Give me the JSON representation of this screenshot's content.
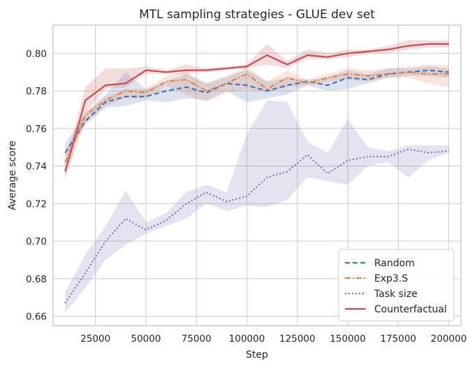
{
  "chart_data": {
    "type": "line",
    "title": "MTL sampling strategies - GLUE dev set",
    "xlabel": "Step",
    "ylabel": "Average score",
    "xlim": [
      4000,
      206000
    ],
    "ylim": [
      0.655,
      0.815
    ],
    "xticks": [
      25000,
      50000,
      75000,
      100000,
      125000,
      150000,
      175000,
      200000
    ],
    "xtick_labels": [
      "25000",
      "50000",
      "75000",
      "100000",
      "125000",
      "150000",
      "175000",
      "200000"
    ],
    "yticks": [
      0.66,
      0.68,
      0.7,
      0.72,
      0.74,
      0.76,
      0.78,
      0.8
    ],
    "ytick_labels": [
      "0.66",
      "0.68",
      "0.70",
      "0.72",
      "0.74",
      "0.76",
      "0.78",
      "0.80"
    ],
    "grid": true,
    "legend_position": "bottom-right",
    "x": [
      10000,
      20000,
      30000,
      40000,
      50000,
      60000,
      70000,
      80000,
      90000,
      100000,
      110000,
      120000,
      130000,
      140000,
      150000,
      160000,
      170000,
      180000,
      190000,
      200000
    ],
    "series": [
      {
        "name": "Random",
        "color": "#4c72b0",
        "dash": "dashed",
        "values": [
          0.747,
          0.764,
          0.774,
          0.777,
          0.777,
          0.78,
          0.782,
          0.779,
          0.784,
          0.783,
          0.78,
          0.783,
          0.785,
          0.783,
          0.787,
          0.786,
          0.789,
          0.79,
          0.791,
          0.79
        ],
        "lower": [
          0.744,
          0.762,
          0.771,
          0.772,
          0.775,
          0.774,
          0.776,
          0.775,
          0.78,
          0.774,
          0.776,
          0.778,
          0.783,
          0.78,
          0.781,
          0.784,
          0.787,
          0.788,
          0.788,
          0.787
        ],
        "upper": [
          0.752,
          0.768,
          0.778,
          0.79,
          0.781,
          0.785,
          0.789,
          0.784,
          0.788,
          0.791,
          0.785,
          0.787,
          0.786,
          0.787,
          0.791,
          0.789,
          0.792,
          0.792,
          0.793,
          0.792
        ]
      },
      {
        "name": "Exp3.S",
        "color": "#dd8452",
        "dash": "dashdot",
        "values": [
          0.742,
          0.767,
          0.775,
          0.78,
          0.779,
          0.785,
          0.786,
          0.78,
          0.784,
          0.789,
          0.781,
          0.787,
          0.784,
          0.787,
          0.789,
          0.788,
          0.789,
          0.79,
          0.789,
          0.789
        ],
        "lower": [
          0.735,
          0.763,
          0.772,
          0.776,
          0.776,
          0.783,
          0.778,
          0.774,
          0.779,
          0.781,
          0.779,
          0.782,
          0.783,
          0.785,
          0.786,
          0.785,
          0.787,
          0.787,
          0.784,
          0.782
        ],
        "upper": [
          0.748,
          0.769,
          0.777,
          0.781,
          0.781,
          0.788,
          0.79,
          0.784,
          0.787,
          0.793,
          0.785,
          0.791,
          0.786,
          0.789,
          0.792,
          0.791,
          0.792,
          0.793,
          0.794,
          0.794
        ]
      },
      {
        "name": "Task size",
        "color": "#8172b2",
        "dash": "dotted",
        "values": [
          0.667,
          0.683,
          0.7,
          0.712,
          0.706,
          0.711,
          0.72,
          0.726,
          0.721,
          0.724,
          0.734,
          0.737,
          0.746,
          0.736,
          0.743,
          0.745,
          0.745,
          0.749,
          0.747,
          0.748
        ],
        "lower": [
          0.662,
          0.675,
          0.69,
          0.698,
          0.704,
          0.708,
          0.712,
          0.72,
          0.716,
          0.719,
          0.718,
          0.722,
          0.734,
          0.732,
          0.73,
          0.74,
          0.742,
          0.734,
          0.743,
          0.747
        ],
        "upper": [
          0.673,
          0.693,
          0.708,
          0.727,
          0.71,
          0.715,
          0.726,
          0.73,
          0.726,
          0.757,
          0.775,
          0.774,
          0.753,
          0.747,
          0.765,
          0.75,
          0.748,
          0.751,
          0.751,
          0.751
        ]
      },
      {
        "name": "Counterfactual",
        "color": "#c44e52",
        "dash": "solid",
        "values": [
          0.737,
          0.775,
          0.783,
          0.784,
          0.791,
          0.79,
          0.791,
          0.791,
          0.792,
          0.793,
          0.799,
          0.794,
          0.799,
          0.798,
          0.8,
          0.801,
          0.802,
          0.804,
          0.805,
          0.805
        ],
        "lower": [
          0.733,
          0.768,
          0.781,
          0.782,
          0.789,
          0.789,
          0.789,
          0.79,
          0.791,
          0.792,
          0.794,
          0.792,
          0.797,
          0.797,
          0.798,
          0.8,
          0.8,
          0.802,
          0.803,
          0.803
        ],
        "upper": [
          0.741,
          0.782,
          0.792,
          0.792,
          0.793,
          0.791,
          0.794,
          0.792,
          0.793,
          0.794,
          0.805,
          0.796,
          0.802,
          0.8,
          0.802,
          0.802,
          0.804,
          0.807,
          0.807,
          0.807
        ]
      }
    ]
  }
}
